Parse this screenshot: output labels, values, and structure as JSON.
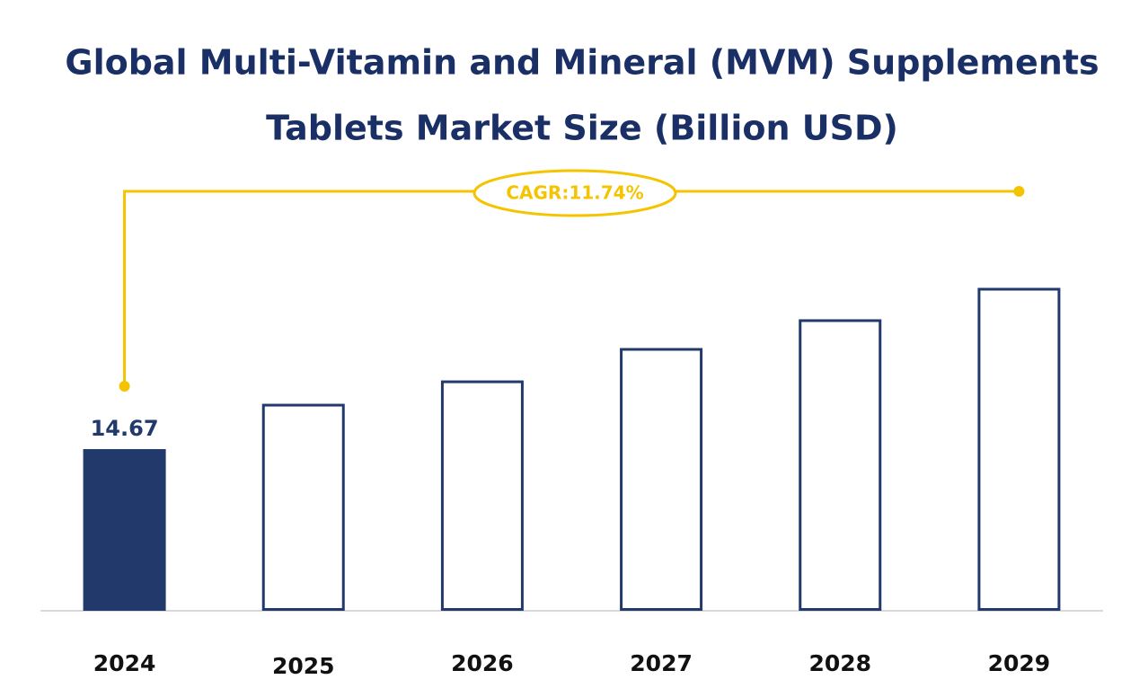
{
  "chart_data": {
    "type": "bar",
    "title": [
      "Global Multi-Vitamin and Mineral (MVM) Supplements",
      "Tablets Market Size (Billion USD)"
    ],
    "categories": [
      "2024",
      "2025",
      "2026",
      "2027",
      "2028",
      "2029"
    ],
    "values": [
      14.67,
      18.66,
      20.78,
      23.72,
      26.33,
      29.18
    ],
    "color": "#213a6b",
    "highlight": 0,
    "annotation": "CAGR:11.74%",
    "annotation_color": "#f5c400"
  }
}
